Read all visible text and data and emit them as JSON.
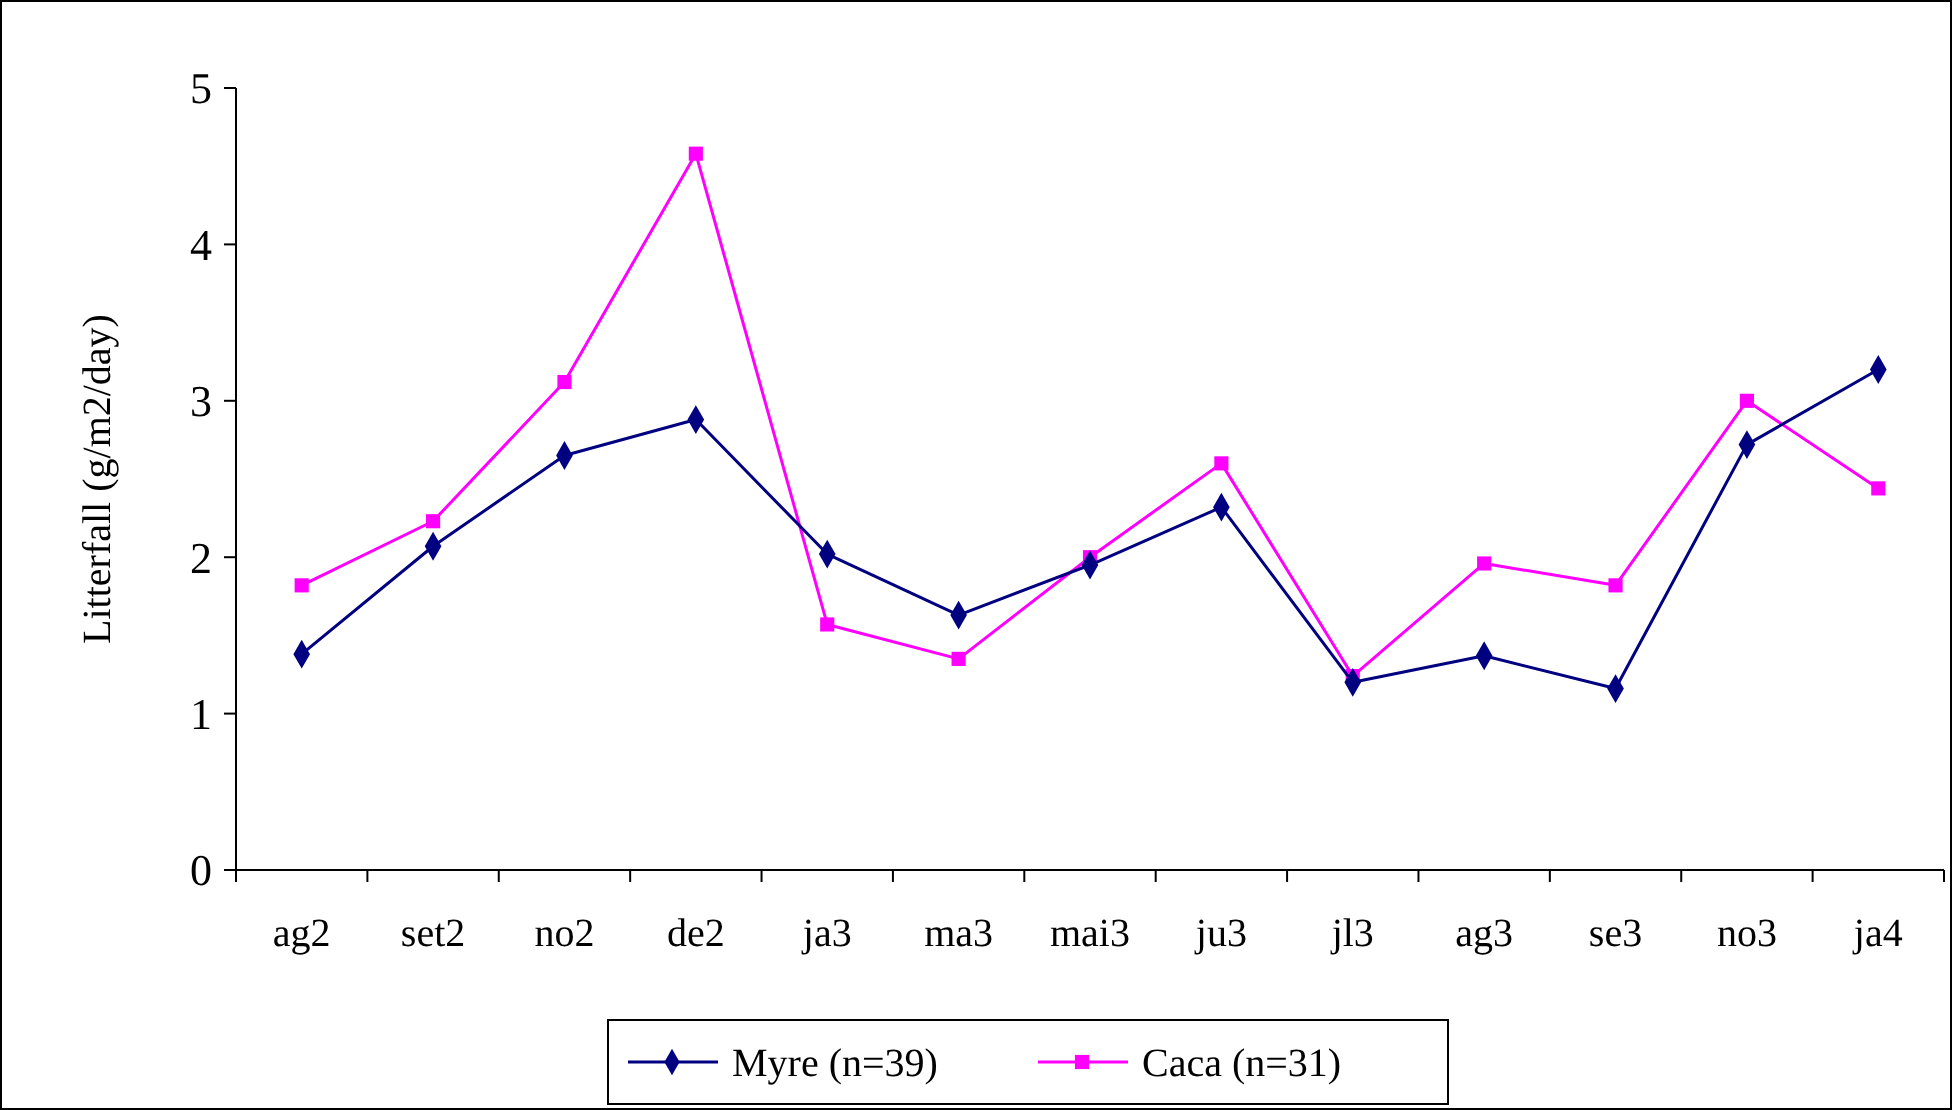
{
  "chart_data": {
    "type": "line",
    "ylabel": "Litterfall (g/m2/day)",
    "categories": [
      "ag2",
      "set2",
      "no2",
      "de2",
      "ja3",
      "ma3",
      "mai3",
      "ju3",
      "jl3",
      "ag3",
      "se3",
      "no3",
      "ja4"
    ],
    "series": [
      {
        "name": "Myre (n=39)",
        "color": "#000080",
        "marker": "diamond",
        "values": [
          1.38,
          2.07,
          2.65,
          2.88,
          2.02,
          1.63,
          1.95,
          2.32,
          1.2,
          1.37,
          1.16,
          2.72,
          3.2
        ]
      },
      {
        "name": "Caca (n=31)",
        "color": "#ff00ff",
        "marker": "square",
        "values": [
          1.82,
          2.23,
          3.12,
          4.58,
          1.57,
          1.35,
          2.0,
          2.6,
          1.24,
          1.96,
          1.82,
          3.0,
          2.44
        ]
      }
    ],
    "ylim": [
      0,
      5
    ],
    "yticks": [
      0,
      1,
      2,
      3,
      4,
      5
    ],
    "grid": false,
    "legend": "bottom",
    "line_style": "solid"
  }
}
